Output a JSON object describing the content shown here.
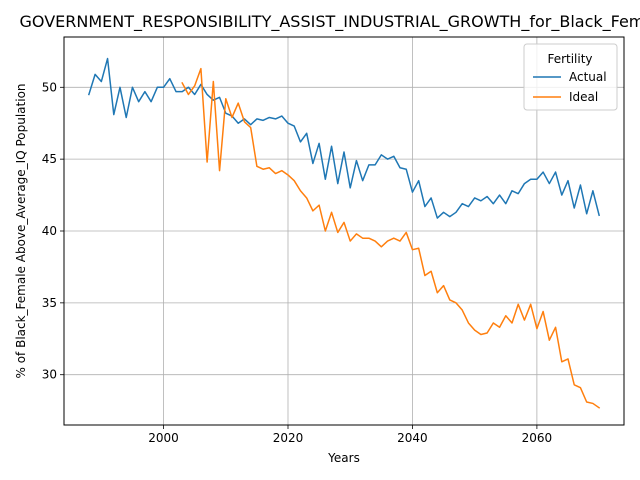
{
  "chart_data": {
    "type": "line",
    "title": "GOVERNMENT_RESPONSIBILITY_ASSIST_INDUSTRIAL_GROWTH_for_Black_Female",
    "xlabel": "Years",
    "ylabel": "% of Black_Female Above_Average_IQ Population",
    "xlim": [
      1984,
      2074
    ],
    "ylim": [
      26.5,
      53.5
    ],
    "xticks": [
      2000,
      2020,
      2040,
      2060
    ],
    "yticks": [
      30,
      35,
      40,
      45,
      50
    ],
    "grid": true,
    "legend": {
      "title": "Fertility",
      "position": "top-right"
    },
    "series": [
      {
        "name": "Actual",
        "color": "#1f77b4",
        "x": [
          1988,
          1989,
          1990,
          1991,
          1992,
          1993,
          1994,
          1995,
          1996,
          1997,
          1998,
          1999,
          2000,
          2001,
          2002,
          2003,
          2004,
          2005,
          2006,
          2007,
          2008,
          2009,
          2010,
          2011,
          2012,
          2013,
          2014,
          2015,
          2016,
          2017,
          2018,
          2019,
          2020,
          2021,
          2022,
          2023,
          2024,
          2025,
          2026,
          2027,
          2028,
          2029,
          2030,
          2031,
          2032,
          2033,
          2034,
          2035,
          2036,
          2037,
          2038,
          2039,
          2040,
          2041,
          2042,
          2043,
          2044,
          2045,
          2046,
          2047,
          2048,
          2049,
          2050,
          2051,
          2052,
          2053,
          2054,
          2055,
          2056,
          2057,
          2058,
          2059,
          2060,
          2061,
          2062,
          2063,
          2064,
          2065,
          2066,
          2067,
          2068,
          2069,
          2070
        ],
        "values": [
          49.5,
          50.9,
          50.4,
          52.0,
          48.1,
          50.0,
          47.9,
          50.0,
          49.0,
          49.7,
          49.0,
          50.0,
          50.0,
          50.6,
          49.7,
          49.7,
          50.0,
          49.5,
          50.2,
          49.5,
          49.1,
          49.3,
          48.2,
          48.0,
          47.5,
          47.8,
          47.4,
          47.8,
          47.7,
          47.9,
          47.8,
          48.0,
          47.5,
          47.3,
          46.2,
          46.8,
          44.7,
          46.1,
          43.6,
          45.9,
          43.3,
          45.5,
          43.0,
          44.9,
          43.5,
          44.6,
          44.6,
          45.3,
          45.0,
          45.2,
          44.4,
          44.3,
          42.7,
          43.5,
          41.7,
          42.3,
          40.9,
          41.3,
          41.0,
          41.3,
          41.9,
          41.7,
          42.3,
          42.1,
          42.4,
          41.9,
          42.5,
          41.9,
          42.8,
          42.6,
          43.3,
          43.6,
          43.6,
          44.1,
          43.3,
          44.1,
          42.5,
          43.5,
          41.6,
          43.2,
          41.2,
          42.8,
          41.1
        ]
      },
      {
        "name": "Ideal",
        "color": "#ff7f0e",
        "x": [
          2003,
          2004,
          2005,
          2006,
          2007,
          2008,
          2009,
          2010,
          2011,
          2012,
          2013,
          2014,
          2015,
          2016,
          2017,
          2018,
          2019,
          2020,
          2021,
          2022,
          2023,
          2024,
          2025,
          2026,
          2027,
          2028,
          2029,
          2030,
          2031,
          2032,
          2033,
          2034,
          2035,
          2036,
          2037,
          2038,
          2039,
          2040,
          2041,
          2042,
          2043,
          2044,
          2045,
          2046,
          2047,
          2048,
          2049,
          2050,
          2051,
          2052,
          2053,
          2054,
          2055,
          2056,
          2057,
          2058,
          2059,
          2060,
          2061,
          2062,
          2063,
          2064,
          2065,
          2066,
          2067,
          2068,
          2069,
          2070
        ],
        "values": [
          50.3,
          49.5,
          50.1,
          51.3,
          44.8,
          50.4,
          44.2,
          49.2,
          47.9,
          48.9,
          47.6,
          47.2,
          44.5,
          44.3,
          44.4,
          44.0,
          44.2,
          43.9,
          43.5,
          42.8,
          42.3,
          41.4,
          41.8,
          40.0,
          41.3,
          39.9,
          40.6,
          39.3,
          39.8,
          39.5,
          39.5,
          39.3,
          38.9,
          39.3,
          39.5,
          39.3,
          39.9,
          38.7,
          38.8,
          36.9,
          37.2,
          35.7,
          36.2,
          35.2,
          35.0,
          34.5,
          33.6,
          33.1,
          32.8,
          32.9,
          33.6,
          33.3,
          34.1,
          33.6,
          34.9,
          33.8,
          34.9,
          33.2,
          34.4,
          32.4,
          33.3,
          30.9,
          31.1,
          29.3,
          29.1,
          28.1,
          28.0,
          27.7
        ]
      }
    ]
  }
}
